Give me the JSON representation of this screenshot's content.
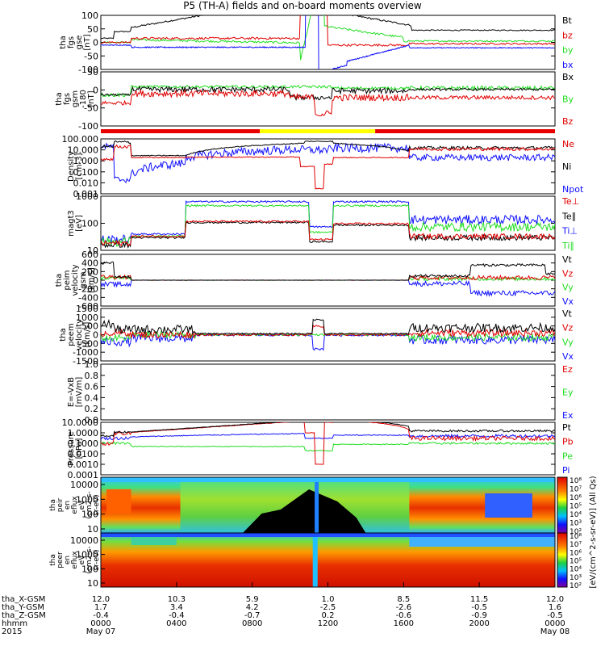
{
  "title": "P5 (TH-A) fields and on-board moments overview",
  "colors": {
    "black": "#000000",
    "red": "#e00000",
    "green": "#22dd22",
    "blue": "#1010ff",
    "yellowbar": "#ffff00",
    "redbar": "#e80000"
  },
  "chart_data": [
    {
      "type": "line",
      "panel": "fgs_gse",
      "ylabel": [
        "tha",
        "fgs",
        "gse",
        "[nT]"
      ],
      "yticks": [
        "100",
        "50",
        "0",
        "-50",
        "-100"
      ],
      "ylim": [
        -100,
        100
      ],
      "legend": [
        {
          "name": "Bt",
          "color": "black"
        },
        {
          "name": "bz",
          "color": "red"
        },
        {
          "name": "by",
          "color": "green"
        },
        {
          "name": "bx",
          "color": "blue"
        }
      ]
    },
    {
      "type": "line",
      "panel": "fgs_gsm",
      "ylabel": [
        "tha",
        "fgs",
        "gsm",
        "-180",
        "[nT]"
      ],
      "yticks": [
        "50",
        "0",
        "-50",
        "-100"
      ],
      "ylim": [
        -125,
        75
      ],
      "legend": [
        {
          "name": "Bx",
          "color": "black"
        },
        {
          "name": "By",
          "color": "green"
        },
        {
          "name": "Bz",
          "color": "red"
        }
      ]
    },
    {
      "type": "line",
      "panel": "density",
      "ylabel": [
        "Density",
        "[cm-3]"
      ],
      "yticks": [
        "100.000",
        "10.000",
        "1.000",
        "0.100",
        "0.010",
        "0.001"
      ],
      "ylim": [
        0.001,
        100
      ],
      "legend": [
        {
          "name": "Ne",
          "color": "red"
        },
        {
          "name": "Ni",
          "color": "black"
        },
        {
          "name": "Npot",
          "color": "blue"
        }
      ]
    },
    {
      "type": "line",
      "panel": "temperature",
      "ylabel": [
        "magt3",
        "[eV]"
      ],
      "yticks": [
        "1000",
        "100",
        "10"
      ],
      "ylim": [
        10,
        10000
      ],
      "legend": [
        {
          "name": "Te⊥",
          "color": "red"
        },
        {
          "name": "Te∥",
          "color": "black"
        },
        {
          "name": "Ti⊥",
          "color": "blue"
        },
        {
          "name": "Ti∥",
          "color": "green"
        }
      ]
    },
    {
      "type": "line",
      "panel": "peim_velocity",
      "ylabel": [
        "tha",
        "peim",
        "velocity",
        "gsm",
        "[km/s]"
      ],
      "yticks": [
        "600",
        "400",
        "200",
        "0",
        "-200",
        "-400",
        "-600"
      ],
      "ylim": [
        -600,
        600
      ],
      "legend": [
        {
          "name": "Vt",
          "color": "black"
        },
        {
          "name": "Vz",
          "color": "red"
        },
        {
          "name": "Vy",
          "color": "green"
        },
        {
          "name": "Vx",
          "color": "blue"
        }
      ]
    },
    {
      "type": "line",
      "panel": "peem_velocity",
      "ylabel": [
        "tha",
        "peem",
        "velocity",
        "[km/s]"
      ],
      "yticks": [
        "1500",
        "1000",
        "500",
        "0",
        "-500",
        "-1000",
        "-1500"
      ],
      "ylim": [
        -1500,
        1500
      ],
      "legend": [
        {
          "name": "Vt",
          "color": "black"
        },
        {
          "name": "Vz",
          "color": "red"
        },
        {
          "name": "Vy",
          "color": "green"
        },
        {
          "name": "Vx",
          "color": "blue"
        }
      ]
    },
    {
      "type": "line",
      "panel": "efield",
      "ylabel": [
        "E=-VxB",
        "[mV/m]"
      ],
      "yticks": [
        "1.0",
        "0.8",
        "0.6",
        "0.4",
        "0.2",
        "0.0"
      ],
      "ylim": [
        0,
        1
      ],
      "legend": [
        {
          "name": "Ez",
          "color": "red"
        },
        {
          "name": "Ey",
          "color": "green"
        },
        {
          "name": "Ex",
          "color": "blue"
        }
      ]
    },
    {
      "type": "line",
      "panel": "pressure",
      "ylabel": [
        "Pressure",
        "[nPa]"
      ],
      "yticks": [
        "10.0000",
        "1.0000",
        "0.1000",
        "0.0100",
        "0.0010",
        "0.0001"
      ],
      "ylim": [
        0.0001,
        10
      ],
      "legend": [
        {
          "name": "Pt",
          "color": "black"
        },
        {
          "name": "Pb",
          "color": "red"
        },
        {
          "name": "Pe",
          "color": "green"
        },
        {
          "name": "Pi",
          "color": "blue"
        }
      ]
    },
    {
      "type": "heatmap",
      "panel": "peir_spec",
      "ylabel": [
        "tha",
        "peir",
        "en",
        "eflux",
        "eV",
        "(cm2-s-",
        "sr-eV)"
      ],
      "yticks": [
        "10000",
        "1000",
        "100",
        "10"
      ],
      "ylim": [
        10,
        30000
      ]
    },
    {
      "type": "heatmap",
      "panel": "peer_spec",
      "ylabel": [
        "tha",
        "peer",
        "en",
        "eflux",
        "eV",
        "(cm2-s-",
        "sr-eV)"
      ],
      "yticks": [
        "10000",
        "1000",
        "100",
        "10"
      ],
      "ylim": [
        10,
        30000
      ]
    }
  ],
  "colorbar": {
    "label": "[eV/(cm^2-s-sr-eV)] (All Qs)",
    "ticks": [
      "10⁸",
      "10⁷",
      "10⁶",
      "10⁵",
      "10⁴",
      "10³",
      "10²"
    ]
  },
  "xaxis": {
    "rows": [
      {
        "label": "tha_X-GSM",
        "values": [
          "12.0",
          "10.3",
          "5.9",
          "1.0",
          "8.5",
          "11.5",
          "12.0"
        ]
      },
      {
        "label": "tha_Y-GSM",
        "values": [
          "1.7",
          "3.4",
          "4.2",
          "-2.5",
          "-2.6",
          "-0.5",
          "1.6"
        ]
      },
      {
        "label": "tha_Z-GSM",
        "values": [
          "-0.4",
          "-0.4",
          "-0.7",
          "0.2",
          "-0.6",
          "-0.9",
          "-0.5"
        ]
      },
      {
        "label": "hhmm",
        "values": [
          "0000",
          "0400",
          "0800",
          "1200",
          "1600",
          "2000",
          "0000"
        ]
      }
    ],
    "year": "2015",
    "start_date": "May 07",
    "end_date": "May 08"
  }
}
